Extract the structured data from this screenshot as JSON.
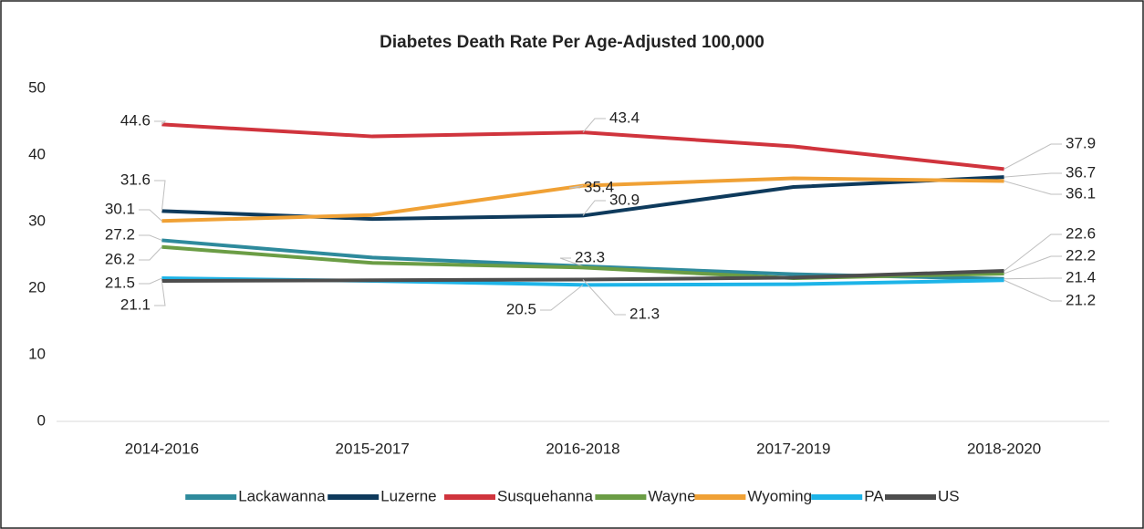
{
  "chart_data": {
    "type": "line",
    "title": "Diabetes Death Rate Per Age-Adjusted 100,000",
    "categories": [
      "2014-2016",
      "2015-2017",
      "2016-2018",
      "2017-2019",
      "2018-2020"
    ],
    "ylim": [
      0,
      50
    ],
    "yticks": [
      0,
      10,
      20,
      30,
      40,
      50
    ],
    "grid": false,
    "legend": "bottom",
    "series": [
      {
        "name": "Lackawanna",
        "color": "#2e8a9c",
        "values": [
          27.2,
          24.6,
          23.3,
          22.1,
          21.4
        ],
        "value_labels": [
          "27.2",
          null,
          "23.3",
          null,
          "21.4"
        ]
      },
      {
        "name": "Luzerne",
        "color": "#0e3a5c",
        "values": [
          31.6,
          30.4,
          30.9,
          35.2,
          36.7
        ],
        "value_labels": [
          "31.6",
          null,
          "30.9",
          null,
          "36.7"
        ]
      },
      {
        "name": "Susquehanna",
        "color": "#d0343d",
        "values": [
          44.6,
          42.8,
          43.4,
          41.3,
          37.9
        ],
        "value_labels": [
          "44.6",
          null,
          "43.4",
          null,
          "37.9"
        ]
      },
      {
        "name": "Wayne",
        "color": "#6b9d45",
        "values": [
          26.2,
          23.8,
          23.1,
          21.5,
          22.2
        ],
        "value_labels": [
          "26.2",
          null,
          null,
          null,
          "22.2"
        ]
      },
      {
        "name": "Wyoming",
        "color": "#f0a135",
        "values": [
          30.1,
          31.0,
          35.4,
          36.5,
          36.1
        ],
        "value_labels": [
          "30.1",
          null,
          "35.4",
          null,
          "36.1"
        ]
      },
      {
        "name": "PA",
        "color": "#1db4e8",
        "values": [
          21.5,
          21.1,
          20.5,
          20.6,
          21.2
        ],
        "value_labels": [
          "21.5",
          null,
          "20.5",
          null,
          "21.2"
        ]
      },
      {
        "name": "US",
        "color": "#4d4d4d",
        "values": [
          21.1,
          21.2,
          21.3,
          21.6,
          22.6
        ],
        "value_labels": [
          "21.1",
          null,
          "21.3",
          null,
          "22.6"
        ]
      }
    ]
  }
}
